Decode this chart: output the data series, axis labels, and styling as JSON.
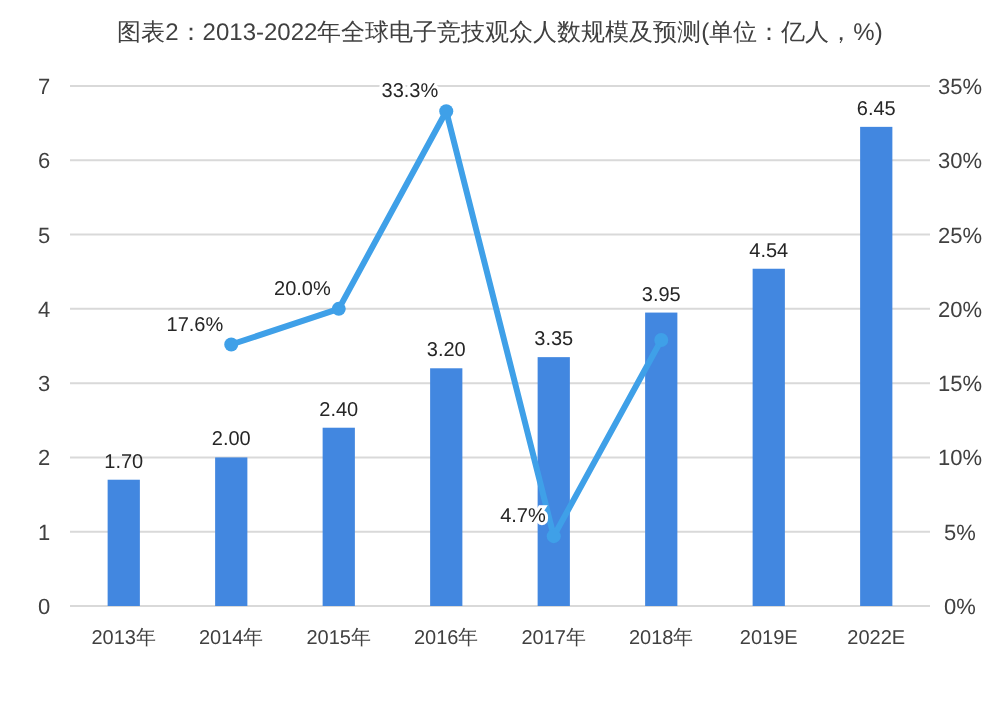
{
  "chart_data": {
    "type": "bar",
    "title": "图表2：2013-2022年全球电子竞技观众人数规模及预测(单位：亿人，%)",
    "categories": [
      "2013年",
      "2014年",
      "2015年",
      "2016年",
      "2017年",
      "2018年",
      "2019E",
      "2022E"
    ],
    "series": [
      {
        "color": "#4287e0",
        "values": [
          1.7,
          2.0,
          2.4,
          3.2,
          3.35,
          3.95,
          4.54,
          6.45
        ],
        "value_labels": [
          "1.70",
          "2.00",
          "2.40",
          "3.20",
          "3.35",
          "3.95",
          "4.54",
          "6.45"
        ]
      },
      {
        "type": "line",
        "axis": "y2",
        "color": "#3fa0e8",
        "marker": "circle",
        "values": [
          null,
          17.6,
          20.0,
          33.3,
          4.7,
          17.9,
          null,
          null
        ],
        "value_labels": [
          null,
          "17.6%",
          "20.0%",
          "33.3%",
          "4.7%",
          null,
          null,
          null
        ]
      }
    ],
    "ylim": [
      0,
      7
    ],
    "yticks": [
      0,
      1,
      2,
      3,
      4,
      5,
      6,
      7
    ],
    "y2lim": [
      0,
      35
    ],
    "y2ticks": [
      {
        "value": 0,
        "label": "0%"
      },
      {
        "value": 5,
        "label": "5%"
      },
      {
        "value": 10,
        "label": "10%"
      },
      {
        "value": 15,
        "label": "15%"
      },
      {
        "value": 20,
        "label": "20%"
      },
      {
        "value": 25,
        "label": "25%"
      },
      {
        "value": 30,
        "label": "30%"
      },
      {
        "value": 35,
        "label": "35%"
      }
    ],
    "grid": "y"
  }
}
